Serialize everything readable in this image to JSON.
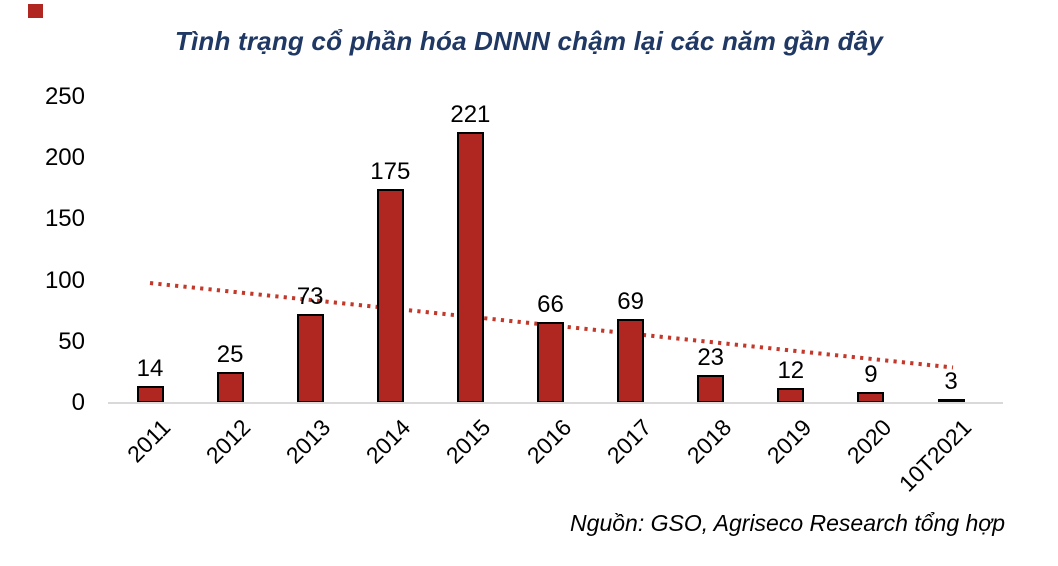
{
  "title": {
    "text": "Tình trạng cổ phần hóa DNNN chậm lại các năm gần đây",
    "color": "#1F3864"
  },
  "source_note": "Nguồn: GSO, Agriseco Research tổng hợp",
  "chart_data": {
    "type": "bar",
    "title": "Tình trạng cổ phần hóa DNNN chậm lại các năm gần đây",
    "categories": [
      "2011",
      "2012",
      "2013",
      "2014",
      "2015",
      "2016",
      "2017",
      "2018",
      "2019",
      "2020",
      "10T2021"
    ],
    "values": [
      14,
      25,
      73,
      175,
      221,
      66,
      69,
      23,
      12,
      9,
      3
    ],
    "data_labels": true,
    "xlabel": "",
    "ylabel": "",
    "ylim": [
      0,
      250
    ],
    "yticks": [
      0,
      50,
      100,
      150,
      200,
      250
    ],
    "grid": false,
    "legend": "none",
    "bar_color": "#B02721",
    "bar_border_color": "#000000",
    "axis_line_color": "#D9D9D9",
    "trendline": {
      "style": "dotted",
      "color": "#C2392B",
      "start_value": 98,
      "end_value": 29
    }
  }
}
